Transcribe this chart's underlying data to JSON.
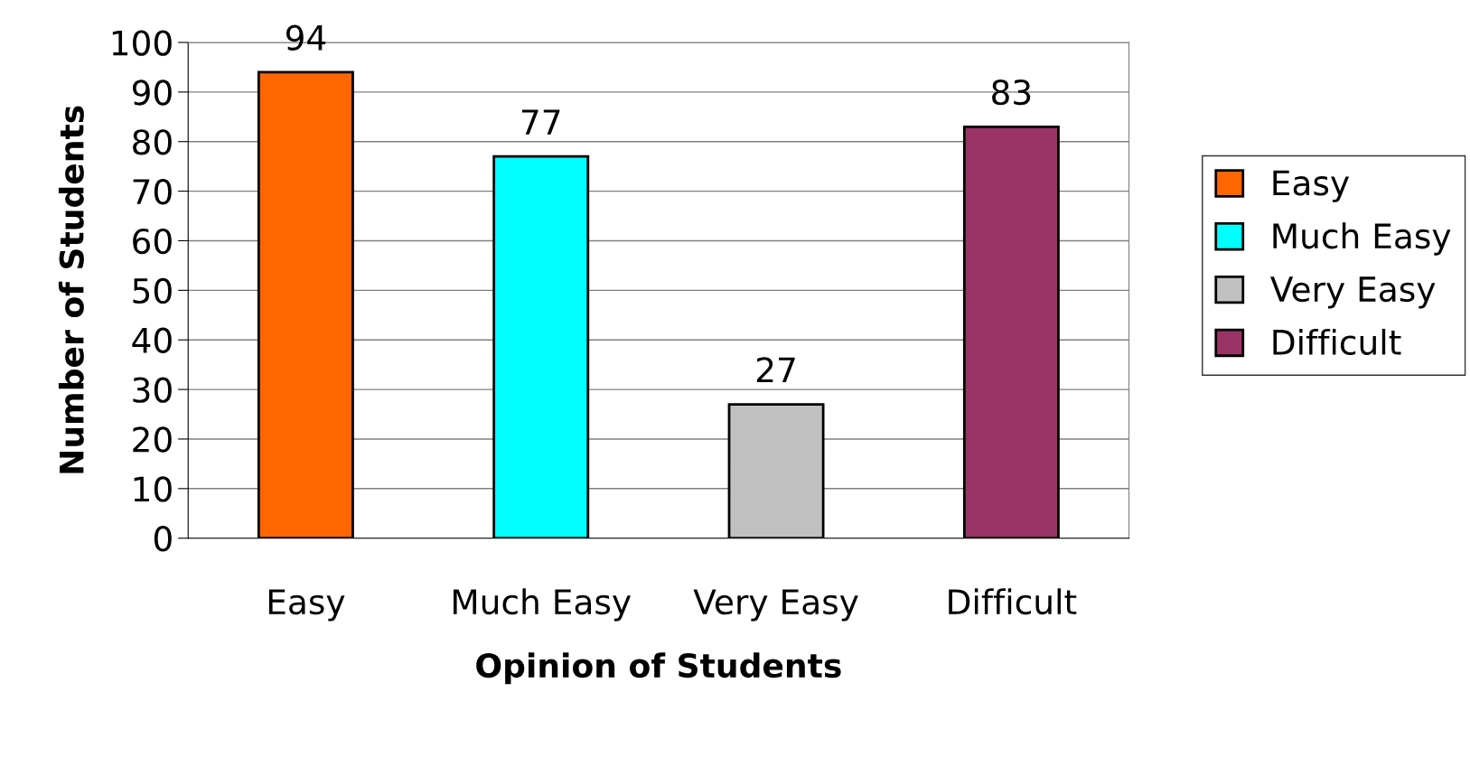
{
  "chart_data": {
    "type": "bar",
    "categories": [
      "Easy",
      "Much Easy",
      "Very Easy",
      "Difficult"
    ],
    "series": [
      {
        "name": "Easy",
        "color": "#ff6600",
        "values": [
          94,
          null,
          null,
          null
        ]
      },
      {
        "name": "Much Easy",
        "color": "#00ffff",
        "values": [
          null,
          77,
          null,
          null
        ]
      },
      {
        "name": "Very Easy",
        "color": "#c0c0c0",
        "values": [
          null,
          null,
          27,
          null
        ]
      },
      {
        "name": "Difficult",
        "color": "#993366",
        "values": [
          null,
          null,
          null,
          83
        ]
      }
    ],
    "xlabel": "Opinion of Students",
    "ylabel": "Number of Students",
    "ylim": [
      0,
      100
    ],
    "yticks": [
      0,
      10,
      20,
      30,
      40,
      50,
      60,
      70,
      80,
      90,
      100
    ],
    "grid": "y",
    "legend": "right",
    "data_labels": true
  }
}
